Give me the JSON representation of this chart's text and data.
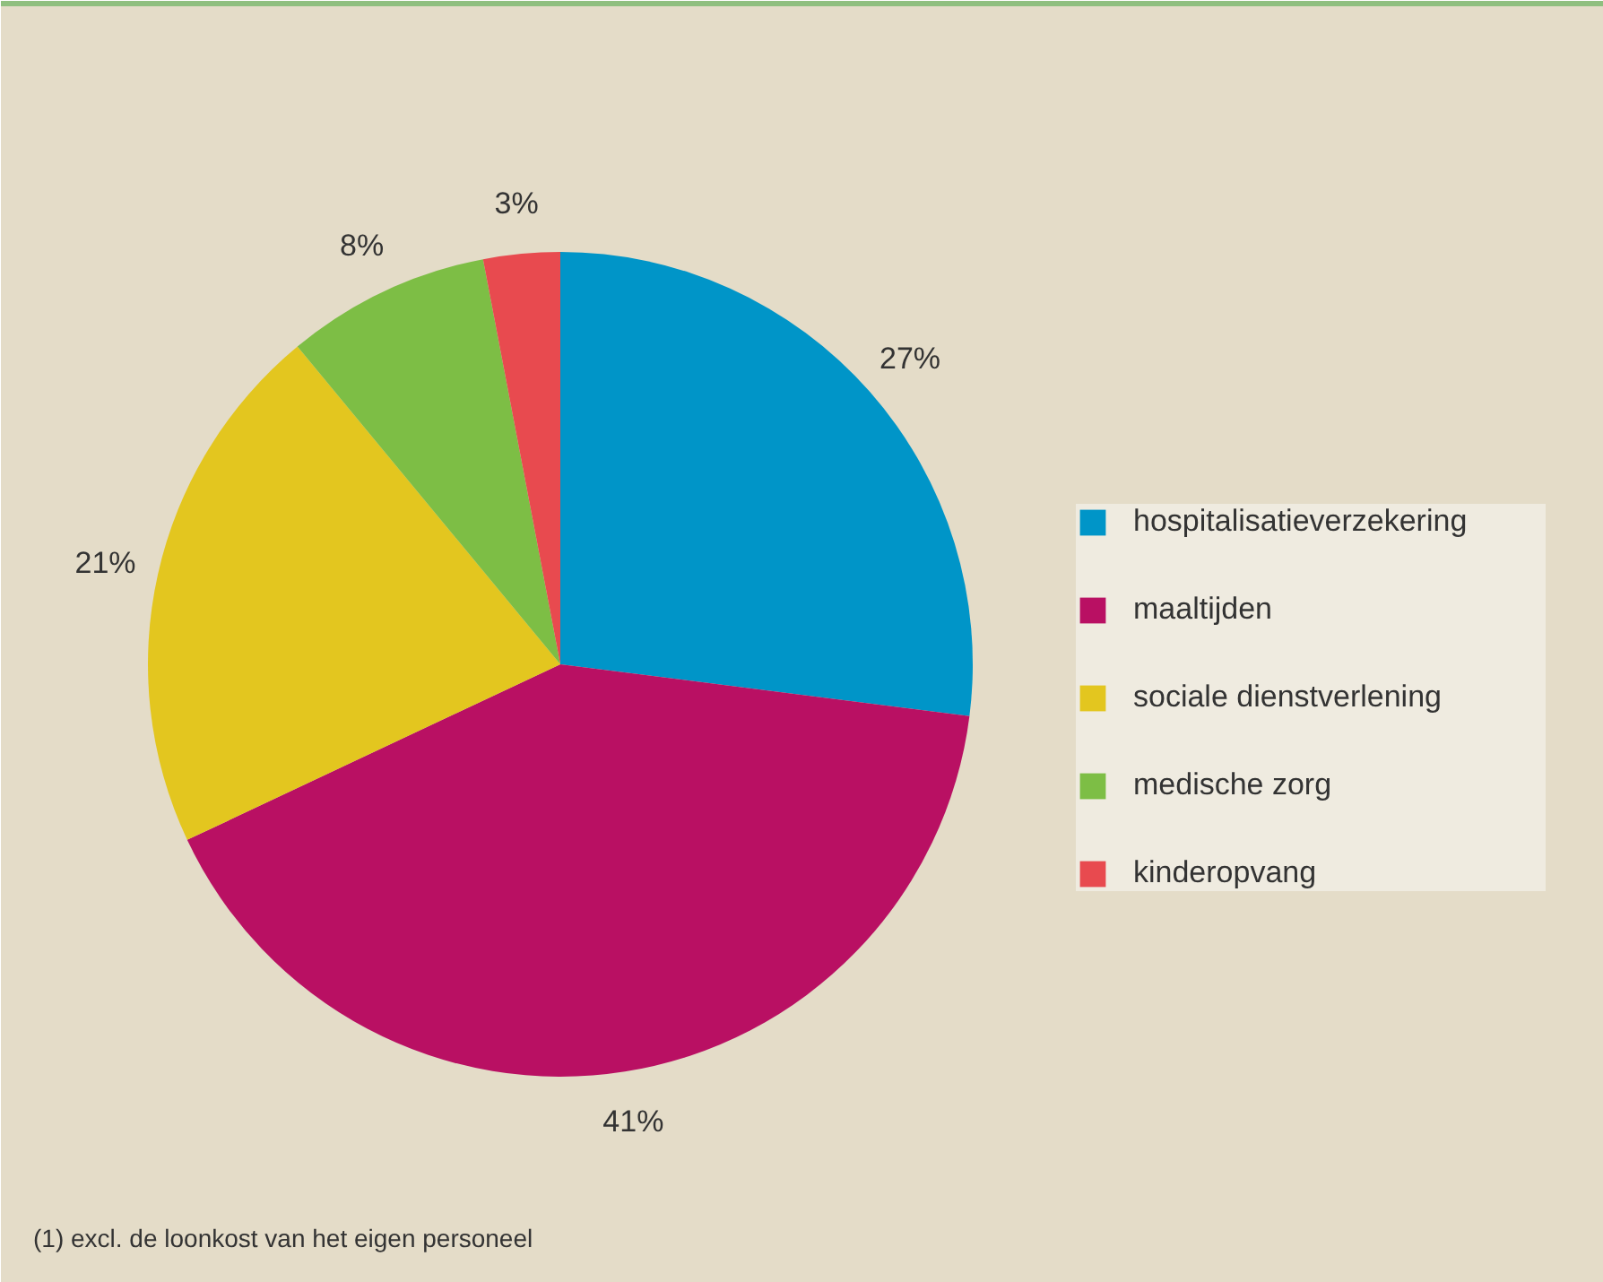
{
  "chart_data": {
    "type": "pie",
    "categories": [
      "hospitalisatieverzekering",
      "maaltijden",
      "sociale dienstverlening",
      "medische zorg",
      "kinderopvang"
    ],
    "values": [
      27,
      41,
      21,
      8,
      3
    ],
    "value_labels": [
      "27%",
      "41%",
      "21%",
      "8%",
      "3%"
    ],
    "colors": [
      "#0095c8",
      "#b91063",
      "#e3c61f",
      "#7dbe45",
      "#e84a4f"
    ],
    "legend": "right",
    "annotations": [
      "(1)   excl. de loonkost van het eigen personeel"
    ]
  }
}
